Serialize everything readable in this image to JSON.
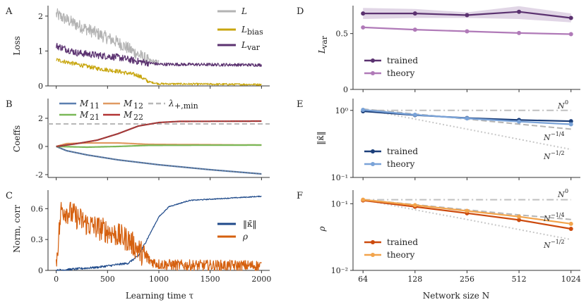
{
  "colors": {
    "L": "#b3b3b3",
    "Lbias": "#c8a60f",
    "Lvar": "#5b3270",
    "M11": "#5b7fb0",
    "M12": "#e09a62",
    "M21": "#7ab858",
    "M22": "#b23434",
    "lambda": "#b8b8b8",
    "kappa": "#1f4a8a",
    "rho": "#d5600f",
    "D_trained": "#5b3270",
    "D_theory": "#b07ab8",
    "D_band": "#d9cce0",
    "E_trained": "#1c3f7a",
    "E_theory": "#7aa3d8",
    "F_trained": "#cc4a0d",
    "F_theory": "#f2a44c",
    "ref_dashdot": "#c0c0c0",
    "ref_dashed": "#b5b5b5",
    "ref_dotted": "#c8c8c8"
  },
  "chart_data": [
    {
      "id": "A",
      "type": "line",
      "letter": "A",
      "xlabel": "",
      "ylabel": "Loss",
      "xlim": [
        -80,
        2080
      ],
      "ylim": [
        0,
        2.3
      ],
      "yticks": [
        0,
        1,
        2
      ],
      "legend_position": "top-right",
      "series": [
        {
          "name": "L",
          "color_key": "L",
          "anchors": [
            [
              0,
              2.05
            ],
            [
              200,
              1.75
            ],
            [
              400,
              1.5
            ],
            [
              600,
              1.25
            ],
            [
              800,
              0.9
            ],
            [
              900,
              0.72
            ],
            [
              1000,
              0.66
            ],
            [
              2000,
              0.65
            ]
          ],
          "noise": 0.18,
          "until": 1000
        },
        {
          "name": "L_bias",
          "color_key": "Lbias",
          "anchors": [
            [
              0,
              0.75
            ],
            [
              200,
              0.62
            ],
            [
              400,
              0.5
            ],
            [
              600,
              0.42
            ],
            [
              800,
              0.3
            ],
            [
              900,
              0.12
            ],
            [
              1000,
              0.06
            ],
            [
              2000,
              0.04
            ]
          ],
          "noise": 0.06,
          "until": 2000
        },
        {
          "name": "L_var",
          "color_key": "Lvar",
          "anchors": [
            [
              0,
              1.15
            ],
            [
              200,
              0.95
            ],
            [
              400,
              0.88
            ],
            [
              600,
              0.82
            ],
            [
              800,
              0.7
            ],
            [
              1000,
              0.62
            ],
            [
              2000,
              0.6
            ]
          ],
          "noise": 0.1,
          "until": 2000
        }
      ]
    },
    {
      "id": "B",
      "type": "line",
      "letter": "B",
      "xlabel": "",
      "ylabel": "Coeffs",
      "xlim": [
        -80,
        2080
      ],
      "ylim": [
        -2.2,
        3.4
      ],
      "yticks": [
        -2,
        0,
        2
      ],
      "legend_position": "top",
      "hline": {
        "name": "λ+,min",
        "value": 1.6
      },
      "series": [
        {
          "name": "M11",
          "color_key": "M11",
          "anchors": [
            [
              0,
              0
            ],
            [
              100,
              -0.3
            ],
            [
              300,
              -0.6
            ],
            [
              600,
              -0.95
            ],
            [
              1000,
              -1.3
            ],
            [
              1500,
              -1.65
            ],
            [
              2000,
              -1.95
            ]
          ],
          "dotted": true
        },
        {
          "name": "M12",
          "color_key": "M12",
          "anchors": [
            [
              0,
              0
            ],
            [
              100,
              0.2
            ],
            [
              300,
              0.25
            ],
            [
              600,
              0.25
            ],
            [
              900,
              0.15
            ],
            [
              2000,
              0.1
            ]
          ]
        },
        {
          "name": "M21",
          "color_key": "M21",
          "anchors": [
            [
              0,
              0
            ],
            [
              300,
              -0.05
            ],
            [
              600,
              0.0
            ],
            [
              900,
              0.08
            ],
            [
              2000,
              0.1
            ]
          ]
        },
        {
          "name": "M22",
          "color_key": "M22",
          "anchors": [
            [
              0,
              0
            ],
            [
              200,
              0.2
            ],
            [
              400,
              0.45
            ],
            [
              600,
              0.9
            ],
            [
              800,
              1.45
            ],
            [
              1000,
              1.7
            ],
            [
              1200,
              1.78
            ],
            [
              2000,
              1.8
            ]
          ],
          "dotted": true
        }
      ]
    },
    {
      "id": "C",
      "type": "line",
      "letter": "C",
      "xlabel": "Learning time τ",
      "ylabel": "Norm, corr",
      "xlim": [
        -80,
        2080
      ],
      "ylim": [
        0,
        0.78
      ],
      "yticks": [
        0,
        0.3,
        0.6
      ],
      "xticks": [
        0,
        500,
        1000,
        1500,
        2000
      ],
      "legend_position": "center-right",
      "series": [
        {
          "name": "‖κ̄‖",
          "color_key": "kappa",
          "anchors": [
            [
              0,
              0.0
            ],
            [
              400,
              0.03
            ],
            [
              700,
              0.07
            ],
            [
              800,
              0.14
            ],
            [
              900,
              0.33
            ],
            [
              1000,
              0.52
            ],
            [
              1100,
              0.62
            ],
            [
              1300,
              0.68
            ],
            [
              2000,
              0.72
            ]
          ],
          "noise": 0.01
        },
        {
          "name": "ρ",
          "color_key": "rho",
          "anchors": [
            [
              0,
              0.08
            ],
            [
              50,
              0.6
            ],
            [
              150,
              0.55
            ],
            [
              300,
              0.45
            ],
            [
              500,
              0.38
            ],
            [
              700,
              0.3
            ],
            [
              800,
              0.2
            ],
            [
              900,
              0.1
            ],
            [
              1000,
              0.06
            ],
            [
              1200,
              0.05
            ],
            [
              2000,
              0.045
            ]
          ],
          "noise": 0.12
        }
      ]
    },
    {
      "id": "D",
      "type": "line",
      "letter": "D",
      "xlabel": "",
      "ylabel": "L_var",
      "xscale": "log2",
      "xlim": [
        56,
        1160
      ],
      "ylim": [
        0,
        0.75
      ],
      "yticks": [
        0.0,
        0.5
      ],
      "legend_position": "bottom-left",
      "x": [
        64,
        128,
        256,
        512,
        1024
      ],
      "series": [
        {
          "name": "trained",
          "color_key": "D_trained",
          "values": [
            0.68,
            0.68,
            0.665,
            0.695,
            0.64
          ],
          "band_low": [
            0.63,
            0.64,
            0.64,
            0.63,
            0.6
          ],
          "band_high": [
            0.73,
            0.72,
            0.69,
            0.745,
            0.68
          ]
        },
        {
          "name": "theory",
          "color_key": "D_theory",
          "values": [
            0.555,
            0.535,
            0.52,
            0.505,
            0.495
          ]
        }
      ]
    },
    {
      "id": "E",
      "type": "line",
      "letter": "E",
      "xlabel": "",
      "ylabel": "‖κ̄‖",
      "xscale": "log2",
      "yscale": "log10",
      "xlim": [
        56,
        1160
      ],
      "ylim": [
        0.1,
        1.5
      ],
      "yticks": [
        0.1,
        1.0
      ],
      "ytick_labels": [
        "10⁻¹",
        "10⁰"
      ],
      "legend_position": "bottom-left",
      "x": [
        64,
        128,
        256,
        512,
        1024
      ],
      "references": [
        {
          "label": "N⁰",
          "style": "dashdot",
          "values": [
            1.0,
            1.0,
            1.0,
            1.0,
            1.0
          ]
        },
        {
          "label": "N⁻¹ᐟ⁴",
          "style": "dashed",
          "values": [
            1.05,
            0.883,
            0.742,
            0.624,
            0.525
          ]
        },
        {
          "label": "N⁻¹ᐟ²",
          "style": "dotted",
          "values": [
            1.05,
            0.742,
            0.525,
            0.371,
            0.262
          ]
        }
      ],
      "series": [
        {
          "name": "trained",
          "color_key": "E_trained",
          "values": [
            0.97,
            0.85,
            0.77,
            0.72,
            0.69
          ]
        },
        {
          "name": "theory",
          "color_key": "E_theory",
          "values": [
            1.02,
            0.86,
            0.76,
            0.68,
            0.62
          ]
        }
      ]
    },
    {
      "id": "F",
      "type": "line",
      "letter": "F",
      "xlabel": "Network size N",
      "ylabel": "ρ",
      "xscale": "log2",
      "yscale": "log10",
      "xlim": [
        56,
        1160
      ],
      "ylim": [
        0.01,
        0.16
      ],
      "yticks": [
        0.01,
        0.1
      ],
      "ytick_labels": [
        "10⁻²",
        "10⁻¹"
      ],
      "xticks": [
        64,
        128,
        256,
        512,
        1024
      ],
      "legend_position": "bottom-left",
      "x": [
        64,
        128,
        256,
        512,
        1024
      ],
      "references": [
        {
          "label": "N⁰",
          "style": "dashdot",
          "values": [
            0.115,
            0.115,
            0.115,
            0.115,
            0.115
          ]
        },
        {
          "label": "N⁻¹ᐟ⁴",
          "style": "dashed",
          "values": [
            0.115,
            0.097,
            0.081,
            0.068,
            0.058
          ]
        },
        {
          "label": "N⁻¹ᐟ²",
          "style": "dotted",
          "values": [
            0.115,
            0.081,
            0.058,
            0.041,
            0.029
          ]
        }
      ],
      "series": [
        {
          "name": "trained",
          "color_key": "F_trained",
          "values": [
            0.112,
            0.09,
            0.072,
            0.057,
            0.042
          ]
        },
        {
          "name": "theory",
          "color_key": "F_theory",
          "values": [
            0.115,
            0.095,
            0.078,
            0.064,
            0.05
          ]
        }
      ]
    }
  ],
  "labels": {
    "A": {
      "letter": "A",
      "ylabel": "Loss",
      "legend": [
        "L",
        "L",
        "bias",
        "L",
        "var"
      ]
    },
    "B": {
      "letter": "B",
      "ylabel": "Coeffs",
      "legend": [
        "M",
        "11",
        "M",
        "12",
        "M",
        "21",
        "M",
        "22",
        "λ",
        "+,min"
      ]
    },
    "C": {
      "letter": "C",
      "ylabel": "Norm, corr",
      "xlabel": "Learning time τ",
      "legend": [
        "‖κ̄‖",
        "ρ"
      ]
    },
    "D": {
      "letter": "D",
      "ylabel": "L",
      "ysub": "var",
      "legend": [
        "trained",
        "theory"
      ]
    },
    "E": {
      "letter": "E",
      "ylabel": "‖κ̄‖",
      "legend": [
        "trained",
        "theory"
      ],
      "ref": [
        "N",
        "0",
        "N",
        "−1/4",
        "N",
        "−1/2"
      ]
    },
    "F": {
      "letter": "F",
      "ylabel": "ρ",
      "xlabel": "Network size N",
      "legend": [
        "trained",
        "theory"
      ],
      "ref": [
        "N",
        "0",
        "N",
        "−1/4",
        "N",
        "−1/2"
      ]
    }
  }
}
